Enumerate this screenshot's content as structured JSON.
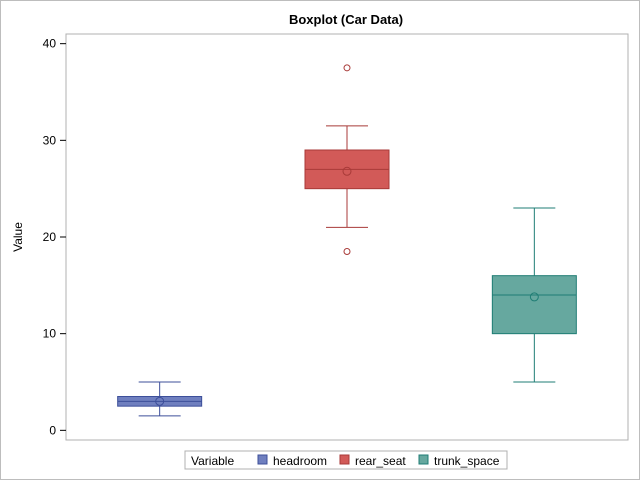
{
  "chart_data": {
    "type": "boxplot",
    "title": "Boxplot (Car Data)",
    "ylabel": "Value",
    "xlabel": "",
    "ylim": [
      -1,
      41
    ],
    "yticks": [
      0,
      10,
      20,
      30,
      40
    ],
    "grid": false,
    "legend": {
      "title": "Variable",
      "placement": "bottom",
      "entries": [
        "headroom",
        "rear_seat",
        "trunk_space"
      ]
    },
    "series": [
      {
        "name": "headroom",
        "color": "#6f7fbf",
        "stroke": "#3d4f9a",
        "whisker_low": 1.5,
        "q1": 2.5,
        "median": 3.0,
        "q3": 3.5,
        "whisker_high": 5.0,
        "mean": 3.0,
        "outliers": []
      },
      {
        "name": "rear_seat",
        "color": "#d25a58",
        "stroke": "#a83a38",
        "whisker_low": 21.0,
        "q1": 25.0,
        "median": 27.0,
        "q3": 29.0,
        "whisker_high": 31.5,
        "mean": 26.8,
        "outliers": [
          37.5,
          18.5
        ]
      },
      {
        "name": "trunk_space",
        "color": "#66a89f",
        "stroke": "#1f7d74",
        "whisker_low": 5.0,
        "q1": 10.0,
        "median": 14.0,
        "q3": 16.0,
        "whisker_high": 23.0,
        "mean": 13.8,
        "outliers": []
      }
    ]
  }
}
